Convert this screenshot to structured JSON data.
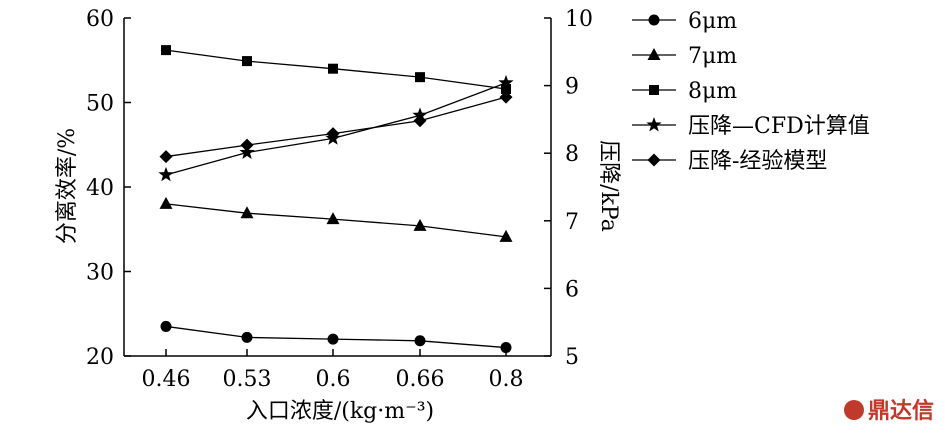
{
  "chart_data": {
    "type": "line",
    "categories": [
      "0.46",
      "0.53",
      "0.6",
      "0.66",
      "0.8"
    ],
    "xlabel": "入口浓度/(kg·m⁻³)",
    "ylabel": "分离效率/%",
    "y2label": "压降/kPa",
    "ylim": [
      20,
      60
    ],
    "yticks": [
      20,
      30,
      40,
      50,
      60
    ],
    "y2lim": [
      5,
      10
    ],
    "y2ticks": [
      5,
      6,
      7,
      8,
      9,
      10
    ],
    "grid": false,
    "legend_position": "right",
    "series": [
      {
        "name": "6μm",
        "axis": "left",
        "marker": "circle",
        "values": [
          23.5,
          22.2,
          22.0,
          21.8,
          21.0
        ]
      },
      {
        "name": "7μm",
        "axis": "left",
        "marker": "triangle",
        "values": [
          38.0,
          36.9,
          36.2,
          35.4,
          34.1
        ]
      },
      {
        "name": "8μm",
        "axis": "left",
        "marker": "square",
        "values": [
          56.2,
          54.9,
          54.0,
          53.0,
          51.6
        ]
      },
      {
        "name": "压降—CFD计算值",
        "axis": "right",
        "marker": "star",
        "values": [
          7.68,
          8.01,
          8.22,
          8.56,
          9.04
        ]
      },
      {
        "name": "压降-经验模型",
        "axis": "right",
        "marker": "diamond",
        "values": [
          7.95,
          8.12,
          8.29,
          8.48,
          8.83
        ]
      }
    ]
  },
  "watermark": {
    "text": "鼎达信",
    "color": "#c0392b"
  }
}
